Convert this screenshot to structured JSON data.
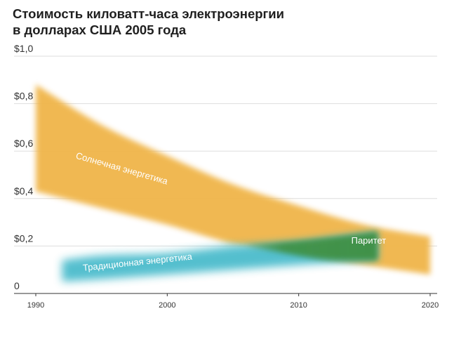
{
  "title_lines": [
    "Стоимость киловатт-часа электроэнергии",
    "в долларах США 2005 года"
  ],
  "chart_data": {
    "type": "area",
    "title": "Стоимость киловатт-часа электроэнергии в долларах США 2005 года",
    "xlabel": "",
    "ylabel": "",
    "xlim": [
      1990,
      2020
    ],
    "ylim": [
      0,
      1.0
    ],
    "x_ticks": [
      1990,
      2000,
      2010,
      2020
    ],
    "x_tick_labels": [
      "1990",
      "2000",
      "2010",
      "2020"
    ],
    "y_ticks": [
      0,
      0.2,
      0.4,
      0.6,
      0.8,
      1.0
    ],
    "y_tick_labels": [
      "0",
      "$0,2",
      "$0,4",
      "$0,6",
      "$0,8",
      "$1,0"
    ],
    "grid": true,
    "series": [
      {
        "name": "Солнечная энергетика",
        "kind": "band",
        "color": "#f0b548",
        "x": [
          1990,
          1995,
          2000,
          2005,
          2010,
          2015,
          2020
        ],
        "upper": [
          0.88,
          0.71,
          0.58,
          0.46,
          0.37,
          0.29,
          0.24
        ],
        "lower": [
          0.43,
          0.36,
          0.29,
          0.21,
          0.16,
          0.12,
          0.08
        ]
      },
      {
        "name": "Традиционная энергетика",
        "kind": "band",
        "color": "#4bbccc",
        "x": [
          1992,
          1995,
          2000,
          2005,
          2010,
          2013,
          2016
        ],
        "upper": [
          0.14,
          0.16,
          0.17,
          0.2,
          0.22,
          0.24,
          0.26
        ],
        "lower": [
          0.05,
          0.06,
          0.08,
          0.1,
          0.12,
          0.13,
          0.14
        ]
      }
    ],
    "annotations": [
      {
        "text": "Паритет",
        "x": 2014,
        "y": 0.21,
        "color": "#3f8f41"
      }
    ]
  }
}
